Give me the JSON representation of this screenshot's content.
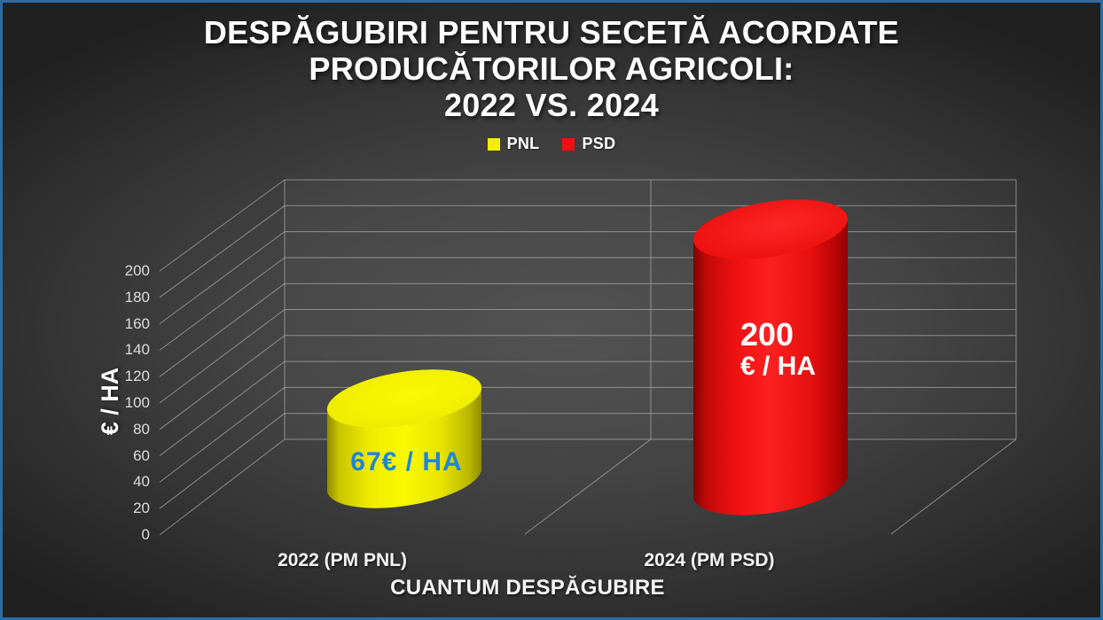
{
  "title": {
    "line1": "DESPĂGUBIRI PENTRU SECETĂ ACORDATE",
    "line2": "PRODUCĂTORILOR AGRICOLI:",
    "line3": "2022 VS. 2024"
  },
  "chart_data": {
    "type": "bar",
    "variant": "3d-cylinder",
    "title": "DESPĂGUBIRI PENTRU SECETĂ ACORDATE PRODUCĂTORILOR AGRICOLI: 2022 VS. 2024",
    "xlabel": "CUANTUM DESPĂGUBIRE",
    "ylabel": "€ / HA",
    "ylim": [
      0,
      200
    ],
    "ytick_step": 20,
    "yticks": [
      0,
      20,
      40,
      60,
      80,
      100,
      120,
      140,
      160,
      180,
      200
    ],
    "grid": true,
    "legend_position": "top",
    "categories": [
      "2022 (PM PNL)",
      "2024 (PM PSD)"
    ],
    "series": [
      {
        "name": "PNL",
        "category": "2022 (PM PNL)",
        "value": 67,
        "color": "#f2ee00",
        "label_lines": [
          "67€ / HA"
        ],
        "label_color": "#1e86d8"
      },
      {
        "name": "PSD",
        "category": "2024 (PM PSD)",
        "value": 200,
        "color": "#ee1111",
        "label_lines": [
          "200",
          "€ / HA"
        ],
        "label_color": "#ffffff"
      }
    ]
  },
  "colors": {
    "background_center": "#4e4e4e",
    "background_edge": "#202020",
    "frame_border": "#2d6ca3",
    "gridline": "#a8a8a8",
    "tick_text": "#dcdcdc",
    "title_text": "#ffffff"
  }
}
